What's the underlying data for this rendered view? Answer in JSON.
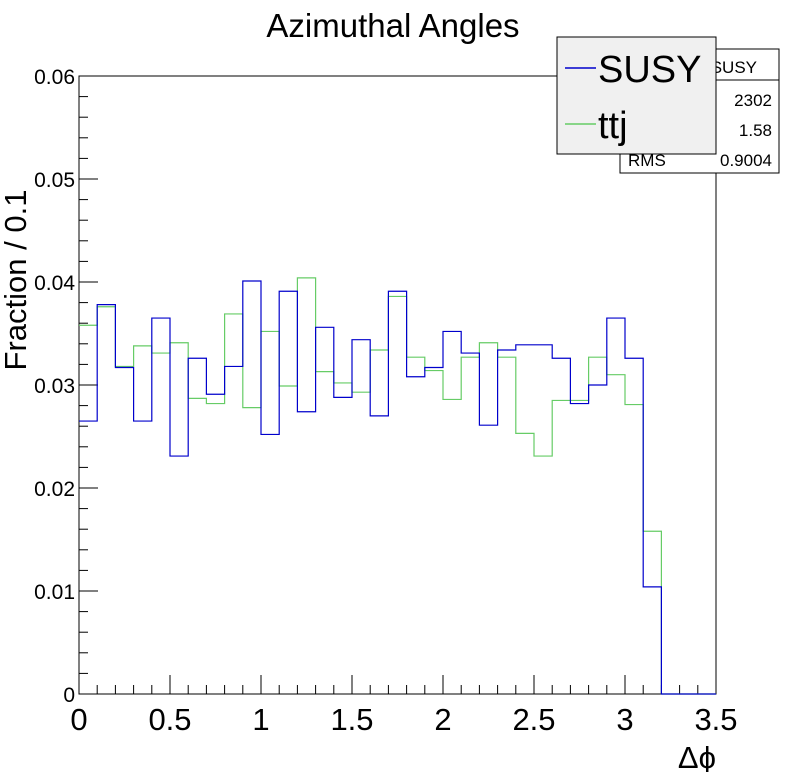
{
  "chart_data": {
    "type": "line",
    "title": "Azimuthal Angles",
    "xlabel": "Δϕ",
    "ylabel": "Fraction / 0.1",
    "xlim": [
      0,
      3.5
    ],
    "ylim": [
      0,
      0.06
    ],
    "x_ticks": [
      "0",
      "0.5",
      "1",
      "1.5",
      "2",
      "2.5",
      "3",
      "3.5"
    ],
    "y_ticks": [
      "0",
      "0.01",
      "0.02",
      "0.03",
      "0.04",
      "0.05",
      "0.06"
    ],
    "bin_width": 0.1,
    "bin_edges_start": 0,
    "series": [
      {
        "name": "SUSY",
        "color": "#0000cc",
        "values": [
          0.0265,
          0.0378,
          0.0317,
          0.0265,
          0.0365,
          0.0231,
          0.0326,
          0.0291,
          0.0318,
          0.0401,
          0.0252,
          0.0391,
          0.0274,
          0.0356,
          0.0288,
          0.0344,
          0.027,
          0.0391,
          0.0308,
          0.0317,
          0.0352,
          0.0331,
          0.0261,
          0.0334,
          0.0339,
          0.0339,
          0.0326,
          0.0282,
          0.03,
          0.0365,
          0.0326,
          0.0104,
          0.0,
          0.0,
          0.0
        ]
      },
      {
        "name": "ttj",
        "color": "#66cc66",
        "values": [
          0.0358,
          0.0376,
          0.0318,
          0.0338,
          0.0331,
          0.0341,
          0.0287,
          0.0282,
          0.0369,
          0.0278,
          0.0352,
          0.0299,
          0.0404,
          0.0313,
          0.0302,
          0.0293,
          0.0334,
          0.0386,
          0.0327,
          0.0314,
          0.0286,
          0.0327,
          0.0341,
          0.0327,
          0.0253,
          0.0231,
          0.0285,
          0.0285,
          0.0327,
          0.031,
          0.0281,
          0.0158,
          0.0,
          0.0,
          0.0
        ]
      }
    ],
    "stats_box": {
      "name": "SUSY",
      "entries_value": "2302",
      "mean_value": "1.58",
      "rms_label": "RMS",
      "rms_value": "0.9004"
    },
    "legend": {
      "placement": "top-right",
      "entries": [
        "SUSY",
        "ttj"
      ]
    },
    "grid": false
  }
}
